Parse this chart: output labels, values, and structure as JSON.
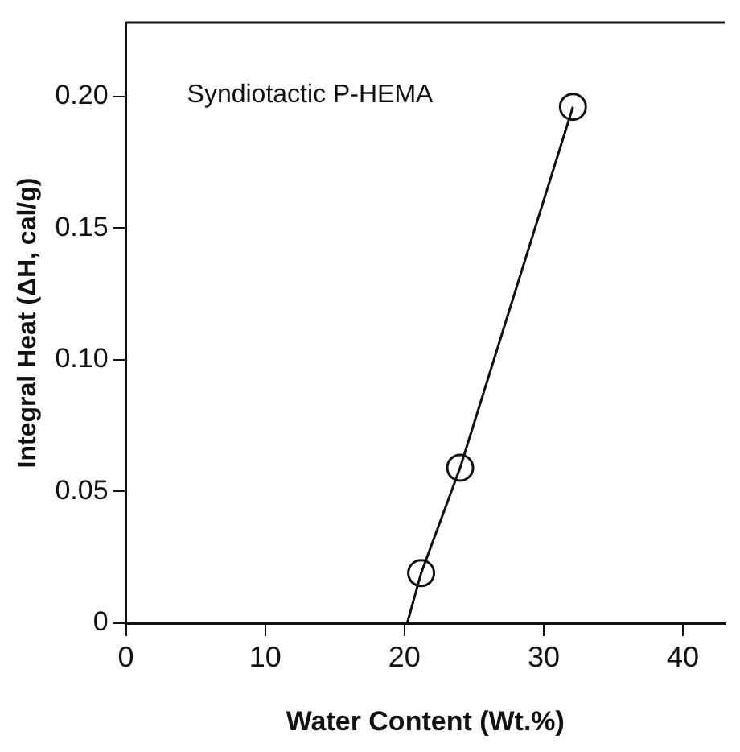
{
  "chart_data": {
    "type": "line",
    "xlabel": "Water Content (Wt.%)",
    "ylabel": "Integral Heat (ΔH, cal/g)",
    "annotations": [
      "Syndiotactic P-HEMA"
    ],
    "xlim": [
      0,
      43
    ],
    "xticks": [
      0,
      10,
      20,
      30,
      40
    ],
    "ylim": [
      0,
      0.228
    ],
    "yticks": [
      0,
      0.05,
      {
        "value": 0.1,
        "label": "0.10"
      },
      0.15,
      {
        "value": 0.2,
        "label": "0.20"
      }
    ],
    "grid": false,
    "legend": false,
    "series": [
      {
        "color": "#111111",
        "marker": "none",
        "x": [
          20.2,
          21.2,
          24.0,
          32.1
        ],
        "values": [
          0,
          0.019,
          0.059,
          0.196
        ]
      },
      {
        "type": "scatter",
        "color": "#111111",
        "marker": "circle",
        "x": [
          21.2,
          24.0,
          32.1
        ],
        "values": [
          0.019,
          0.059,
          0.196
        ]
      }
    ]
  }
}
